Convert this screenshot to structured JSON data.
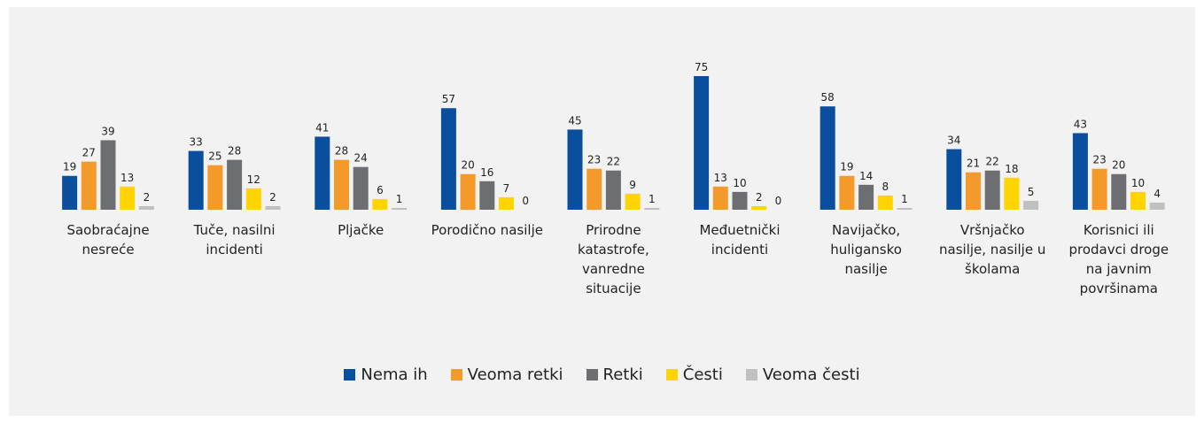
{
  "chart_data": {
    "type": "bar",
    "categories": [
      "Saobraćajne nesreće",
      "Tuče, nasilni incidenti",
      "Pljačke",
      "Porodično nasilje",
      "Prirodne katastrofe, vanredne situacije",
      "Međuetnički incidenti",
      "Navijačko, huligansko nasilje",
      "Vršnjačko nasilje, nasilje u školama",
      "Korisnici ili prodavci droge na javnim površinama"
    ],
    "series": [
      {
        "name": "Nema ih",
        "color": "#0a4f9e",
        "values": [
          19,
          33,
          41,
          57,
          45,
          75,
          58,
          34,
          43
        ]
      },
      {
        "name": "Veoma retki",
        "color": "#f39a2b",
        "values": [
          27,
          25,
          28,
          20,
          23,
          13,
          19,
          21,
          23
        ]
      },
      {
        "name": "Retki",
        "color": "#6d6e71",
        "values": [
          39,
          28,
          24,
          16,
          22,
          10,
          14,
          22,
          20
        ]
      },
      {
        "name": "Česti",
        "color": "#ffd400",
        "values": [
          13,
          12,
          6,
          7,
          9,
          2,
          8,
          18,
          10
        ]
      },
      {
        "name": "Veoma česti",
        "color": "#c0c0c0",
        "values": [
          2,
          2,
          1,
          0,
          1,
          0,
          1,
          5,
          4
        ]
      }
    ],
    "legend": "bottom"
  }
}
